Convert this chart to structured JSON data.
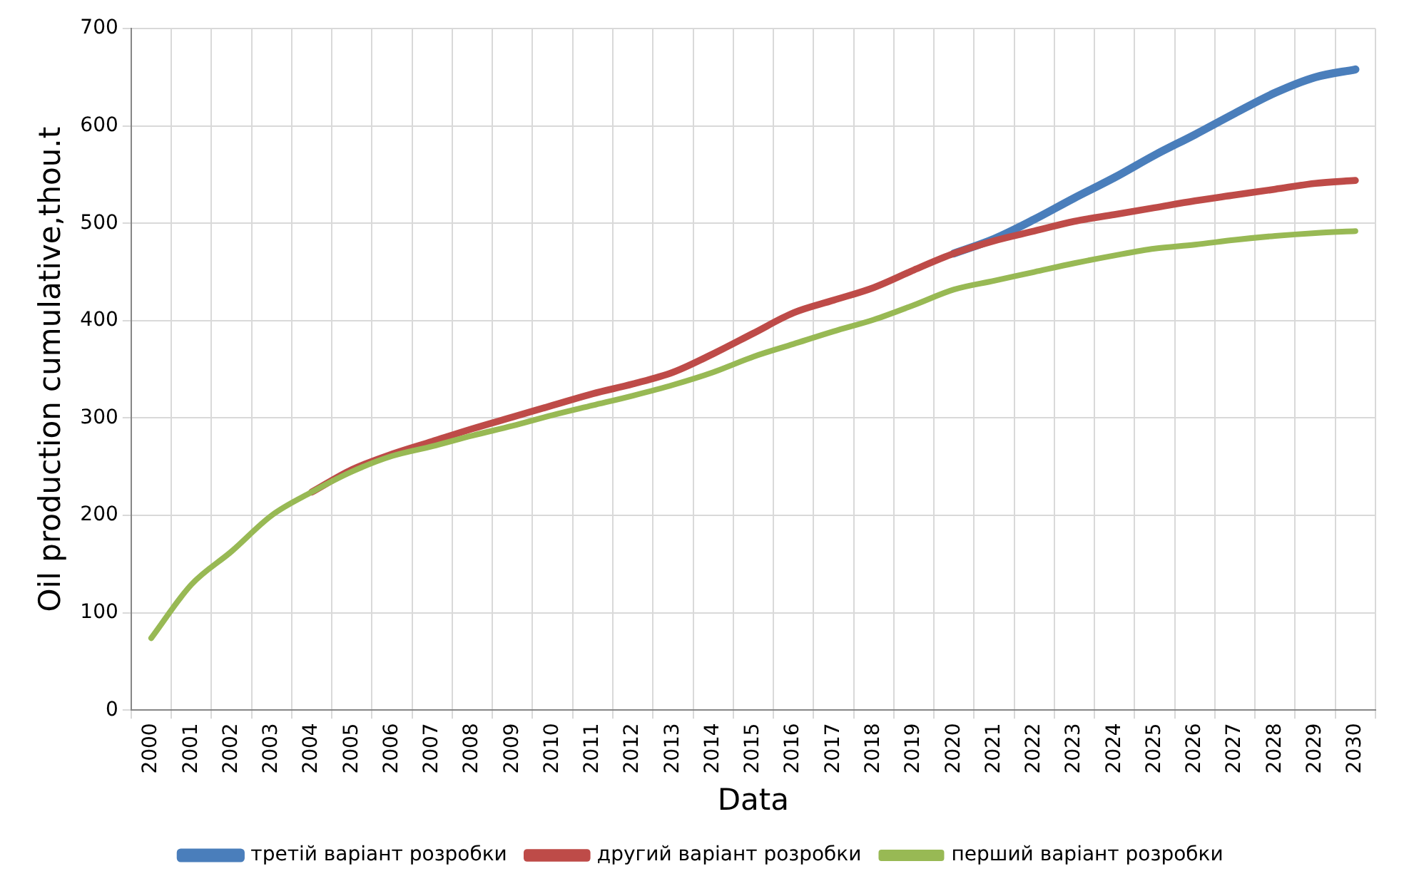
{
  "chart_data": {
    "type": "line",
    "xlabel": "Data",
    "ylabel": "Oil production cumulative,thou.t",
    "categories": [
      "2000",
      "2001",
      "2002",
      "2003",
      "2004",
      "2005",
      "2006",
      "2007",
      "2008",
      "2009",
      "2010",
      "2011",
      "2012",
      "2013",
      "2014",
      "2015",
      "2016",
      "2017",
      "2018",
      "2019",
      "2020",
      "2021",
      "2022",
      "2023",
      "2024",
      "2025",
      "2026",
      "2027",
      "2028",
      "2029",
      "2030"
    ],
    "series": [
      {
        "name": "третій варіант розробки",
        "color": "#4a7ebb",
        "values": [
          null,
          null,
          null,
          null,
          null,
          null,
          null,
          null,
          null,
          null,
          null,
          null,
          null,
          null,
          null,
          null,
          null,
          null,
          null,
          null,
          469,
          484,
          504,
          526,
          547,
          570,
          591,
          613,
          634,
          650,
          658
        ]
      },
      {
        "name": "другий варіант розробки",
        "color": "#be4b48",
        "values": [
          null,
          null,
          null,
          null,
          224,
          247,
          263,
          276,
          289,
          301,
          313,
          325,
          335,
          347,
          366,
          387,
          408,
          421,
          434,
          452,
          469,
          482,
          492,
          502,
          509,
          516,
          523,
          529,
          535,
          541,
          544
        ]
      },
      {
        "name": "перший варіант розробки",
        "color": "#98b954",
        "values": [
          74,
          129,
          163,
          200,
          224,
          245,
          261,
          271,
          282,
          292,
          303,
          313,
          323,
          334,
          347,
          363,
          376,
          389,
          401,
          416,
          432,
          441,
          450,
          459,
          467,
          474,
          478,
          483,
          487,
          490,
          492
        ]
      }
    ],
    "ylim": [
      0,
      700
    ],
    "yticks": [
      0,
      100,
      200,
      300,
      400,
      500,
      600,
      700
    ],
    "grid": true,
    "legend": "bottom",
    "marker": "none",
    "line_style": "solid"
  }
}
